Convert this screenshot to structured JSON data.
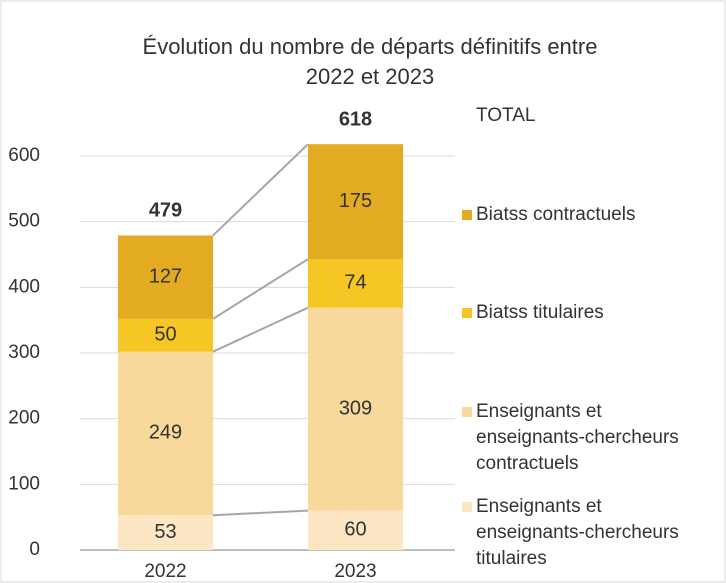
{
  "chart_data": {
    "type": "stacked_bar",
    "title": "Évolution du nombre de départs définitifs entre 2022 et 2023",
    "categories": [
      "2022",
      "2023"
    ],
    "series": [
      {
        "name": "Enseignants et enseignants-chercheurs titulaires",
        "color": "#fce6c4",
        "values": [
          53,
          60
        ]
      },
      {
        "name": "Enseignants et enseignants-chercheurs contractuels",
        "color": "#f9d89c",
        "values": [
          249,
          309
        ]
      },
      {
        "name": "Biatss titulaires",
        "color": "#f6c624",
        "values": [
          50,
          74
        ]
      },
      {
        "name": "Biatss contractuels",
        "color": "#e3ab22",
        "values": [
          127,
          175
        ]
      }
    ],
    "totals_label": "TOTAL",
    "totals": [
      479,
      618
    ],
    "ylim": [
      0,
      600
    ],
    "yticks": [
      0,
      100,
      200,
      300,
      400,
      500,
      600
    ],
    "grid": true
  }
}
